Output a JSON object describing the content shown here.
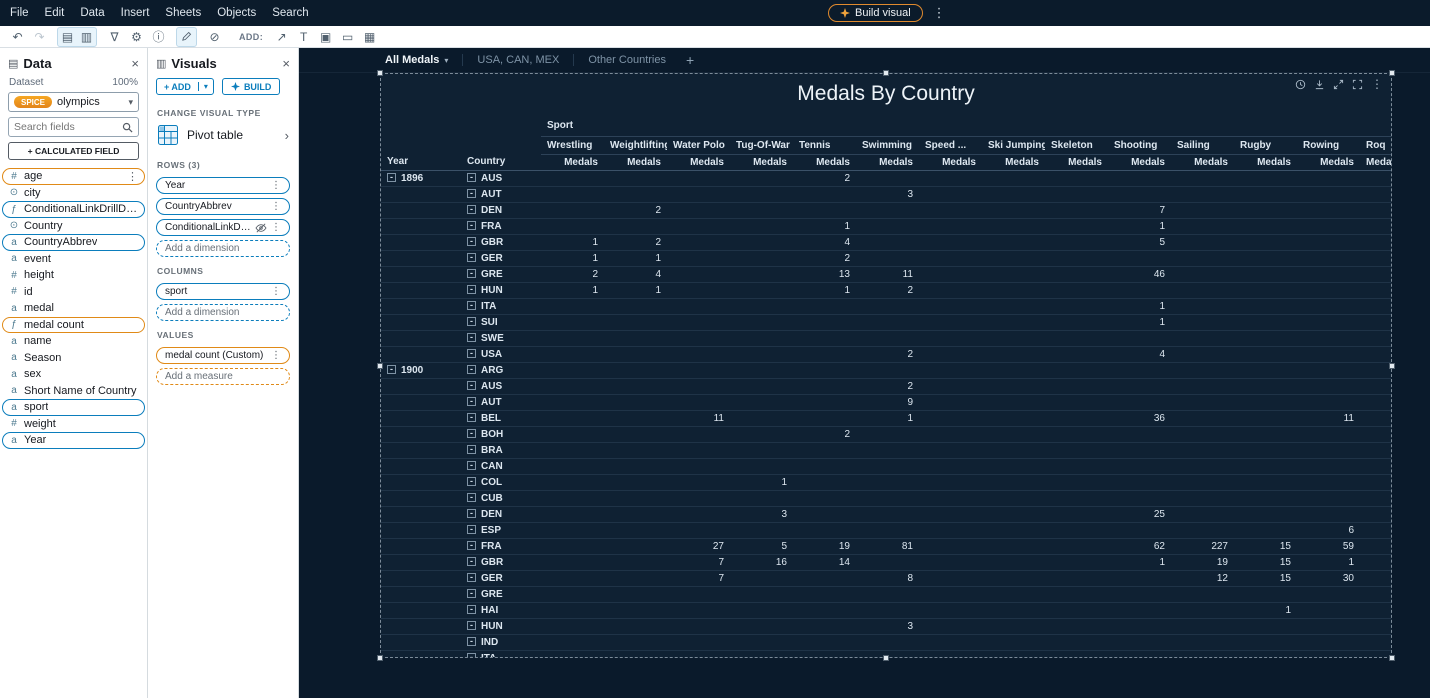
{
  "menubar": {
    "items": [
      "File",
      "Edit",
      "Data",
      "Insert",
      "Sheets",
      "Objects",
      "Search"
    ],
    "build_visual_label": "Build visual"
  },
  "toolbar": {
    "add_label": "ADD:",
    "left_icons": [
      "undo-icon",
      "redo-icon"
    ],
    "view_toggle_icons": [
      "dataset-view-icon",
      "visuals-view-icon"
    ],
    "mid_icons": [
      "filter-icon",
      "parameters-icon",
      "insights-icon"
    ],
    "edit_icons": [
      "edit-icon"
    ],
    "after_icons": [
      "ban-icon"
    ],
    "add_icons": [
      "line-chart-icon",
      "text-icon",
      "image-icon",
      "visual-frame-icon",
      "pivot-grid-icon"
    ]
  },
  "data_panel": {
    "title": "Data",
    "dataset_label": "Dataset",
    "zoom_value": "100%",
    "spice_badge": "SPICE",
    "dataset_name": "olympics",
    "search_placeholder": "Search fields",
    "calculated_field_button": "+ CALCULATED FIELD",
    "fields": [
      {
        "name": "age",
        "icon": "numeric-icon",
        "highlight": "orange",
        "menu": true
      },
      {
        "name": "city",
        "icon": "geo-icon"
      },
      {
        "name": "ConditionalLinkDrillDown",
        "icon": "calculated-icon",
        "highlight": "blue"
      },
      {
        "name": "Country",
        "icon": "geo-icon"
      },
      {
        "name": "CountryAbbrev",
        "icon": "string-icon",
        "highlight": "blue"
      },
      {
        "name": "event",
        "icon": "string-icon"
      },
      {
        "name": "height",
        "icon": "numeric-icon"
      },
      {
        "name": "id",
        "icon": "numeric-icon"
      },
      {
        "name": "medal",
        "icon": "string-icon"
      },
      {
        "name": "medal count",
        "icon": "calculated-icon",
        "highlight": "orange"
      },
      {
        "name": "name",
        "icon": "string-icon"
      },
      {
        "name": "Season",
        "icon": "string-icon"
      },
      {
        "name": "sex",
        "icon": "string-icon"
      },
      {
        "name": "Short Name of Country",
        "icon": "string-icon"
      },
      {
        "name": "sport",
        "icon": "string-icon",
        "highlight": "blue"
      },
      {
        "name": "weight",
        "icon": "numeric-icon"
      },
      {
        "name": "Year",
        "icon": "string-icon",
        "highlight": "blue"
      }
    ]
  },
  "visuals_panel": {
    "title": "Visuals",
    "add_button": "+ ADD",
    "build_button": "BUILD",
    "change_visual_type_label": "CHANGE VISUAL TYPE",
    "visual_type": "Pivot table",
    "rows_label": "ROWS (3)",
    "rows": [
      {
        "label": "Year"
      },
      {
        "label": "CountryAbbrev"
      },
      {
        "label": "ConditionalLinkDrillDown",
        "hidden": true
      }
    ],
    "rows_placeholder": "Add a dimension",
    "columns_label": "COLUMNS",
    "columns": [
      {
        "label": "sport"
      }
    ],
    "columns_placeholder": "Add a dimension",
    "values_label": "VALUES",
    "values": [
      {
        "label": "medal count (Custom)"
      }
    ],
    "values_placeholder": "Add a measure"
  },
  "sheet_tabs": {
    "tabs": [
      {
        "label": "All Medals",
        "active": true
      },
      {
        "label": "USA, CAN, MEX"
      },
      {
        "label": "Other Countries"
      }
    ],
    "add_tab": "+"
  },
  "visual_menu": {
    "icons": [
      "clock-icon",
      "export-icon",
      "expand-icon",
      "maximize-icon",
      "menu-dots-icon"
    ]
  },
  "pivot": {
    "title": "Medals By Country",
    "column_dimension_label": "Sport",
    "measure_label": "Medals",
    "row_headers": [
      "Year",
      "Country"
    ],
    "columns": [
      "Wrestling",
      "Weightlifting",
      "Water Polo",
      "Tug-Of-War",
      "Tennis",
      "Swimming",
      "Speed ...",
      "Ski Jumping",
      "Skeleton",
      "Shooting",
      "Sailing",
      "Rugby",
      "Rowing",
      "Roq"
    ],
    "groups": [
      {
        "year": "1896",
        "rows": [
          {
            "country": "AUS",
            "values": [
              "",
              "",
              "",
              "",
              "2",
              "",
              "",
              "",
              "",
              "",
              "",
              "",
              "",
              ""
            ]
          },
          {
            "country": "AUT",
            "values": [
              "",
              "",
              "",
              "",
              "",
              "3",
              "",
              "",
              "",
              "",
              "",
              "",
              "",
              ""
            ]
          },
          {
            "country": "DEN",
            "values": [
              "",
              "2",
              "",
              "",
              "",
              "",
              "",
              "",
              "",
              "7",
              "",
              "",
              "",
              ""
            ]
          },
          {
            "country": "FRA",
            "values": [
              "",
              "",
              "",
              "",
              "1",
              "",
              "",
              "",
              "",
              "1",
              "",
              "",
              "",
              ""
            ]
          },
          {
            "country": "GBR",
            "values": [
              "1",
              "2",
              "",
              "",
              "4",
              "",
              "",
              "",
              "",
              "5",
              "",
              "",
              "",
              ""
            ]
          },
          {
            "country": "GER",
            "values": [
              "1",
              "1",
              "",
              "",
              "2",
              "",
              "",
              "",
              "",
              "",
              "",
              "",
              "",
              ""
            ]
          },
          {
            "country": "GRE",
            "values": [
              "2",
              "4",
              "",
              "",
              "13",
              "11",
              "",
              "",
              "",
              "46",
              "",
              "",
              "",
              ""
            ]
          },
          {
            "country": "HUN",
            "values": [
              "1",
              "1",
              "",
              "",
              "1",
              "2",
              "",
              "",
              "",
              "",
              "",
              "",
              "",
              ""
            ]
          },
          {
            "country": "ITA",
            "values": [
              "",
              "",
              "",
              "",
              "",
              "",
              "",
              "",
              "",
              "1",
              "",
              "",
              "",
              ""
            ]
          },
          {
            "country": "SUI",
            "values": [
              "",
              "",
              "",
              "",
              "",
              "",
              "",
              "",
              "",
              "1",
              "",
              "",
              "",
              ""
            ]
          },
          {
            "country": "SWE",
            "values": [
              "",
              "",
              "",
              "",
              "",
              "",
              "",
              "",
              "",
              "",
              "",
              "",
              "",
              ""
            ]
          },
          {
            "country": "USA",
            "values": [
              "",
              "",
              "",
              "",
              "",
              "2",
              "",
              "",
              "",
              "4",
              "",
              "",
              "",
              ""
            ]
          }
        ]
      },
      {
        "year": "1900",
        "rows": [
          {
            "country": "ARG",
            "values": [
              "",
              "",
              "",
              "",
              "",
              "",
              "",
              "",
              "",
              "",
              "",
              "",
              "",
              ""
            ]
          },
          {
            "country": "AUS",
            "values": [
              "",
              "",
              "",
              "",
              "",
              "2",
              "",
              "",
              "",
              "",
              "",
              "",
              "",
              ""
            ]
          },
          {
            "country": "AUT",
            "values": [
              "",
              "",
              "",
              "",
              "",
              "9",
              "",
              "",
              "",
              "",
              "",
              "",
              "",
              ""
            ]
          },
          {
            "country": "BEL",
            "values": [
              "",
              "",
              "11",
              "",
              "",
              "1",
              "",
              "",
              "",
              "36",
              "",
              "",
              "11",
              ""
            ]
          },
          {
            "country": "BOH",
            "values": [
              "",
              "",
              "",
              "",
              "2",
              "",
              "",
              "",
              "",
              "",
              "",
              "",
              "",
              ""
            ]
          },
          {
            "country": "BRA",
            "values": [
              "",
              "",
              "",
              "",
              "",
              "",
              "",
              "",
              "",
              "",
              "",
              "",
              "",
              ""
            ]
          },
          {
            "country": "CAN",
            "values": [
              "",
              "",
              "",
              "",
              "",
              "",
              "",
              "",
              "",
              "",
              "",
              "",
              "",
              ""
            ]
          },
          {
            "country": "COL",
            "values": [
              "",
              "",
              "",
              "1",
              "",
              "",
              "",
              "",
              "",
              "",
              "",
              "",
              "",
              ""
            ]
          },
          {
            "country": "CUB",
            "values": [
              "",
              "",
              "",
              "",
              "",
              "",
              "",
              "",
              "",
              "",
              "",
              "",
              "",
              ""
            ]
          },
          {
            "country": "DEN",
            "values": [
              "",
              "",
              "",
              "3",
              "",
              "",
              "",
              "",
              "",
              "25",
              "",
              "",
              "",
              ""
            ]
          },
          {
            "country": "ESP",
            "values": [
              "",
              "",
              "",
              "",
              "",
              "",
              "",
              "",
              "",
              "",
              "",
              "",
              "6",
              ""
            ]
          },
          {
            "country": "FRA",
            "values": [
              "",
              "",
              "27",
              "5",
              "19",
              "81",
              "",
              "",
              "",
              "62",
              "227",
              "15",
              "59",
              ""
            ]
          },
          {
            "country": "GBR",
            "values": [
              "",
              "",
              "7",
              "16",
              "14",
              "",
              "",
              "",
              "",
              "1",
              "19",
              "15",
              "1",
              ""
            ]
          },
          {
            "country": "GER",
            "values": [
              "",
              "",
              "7",
              "",
              "",
              "8",
              "",
              "",
              "",
              "",
              "12",
              "15",
              "30",
              ""
            ]
          },
          {
            "country": "GRE",
            "values": [
              "",
              "",
              "",
              "",
              "",
              "",
              "",
              "",
              "",
              "",
              "",
              "",
              "",
              ""
            ]
          },
          {
            "country": "HAI",
            "values": [
              "",
              "",
              "",
              "",
              "",
              "",
              "",
              "",
              "",
              "",
              "",
              "1",
              "",
              ""
            ]
          },
          {
            "country": "HUN",
            "values": [
              "",
              "",
              "",
              "",
              "",
              "3",
              "",
              "",
              "",
              "",
              "",
              "",
              "",
              ""
            ]
          },
          {
            "country": "IND",
            "values": [
              "",
              "",
              "",
              "",
              "",
              "",
              "",
              "",
              "",
              "",
              "",
              "",
              "",
              ""
            ]
          },
          {
            "country": "ITA",
            "values": [
              "",
              "",
              "",
              "",
              "",
              "",
              "",
              "",
              "",
              "",
              "",
              "",
              "",
              ""
            ]
          }
        ]
      }
    ]
  }
}
